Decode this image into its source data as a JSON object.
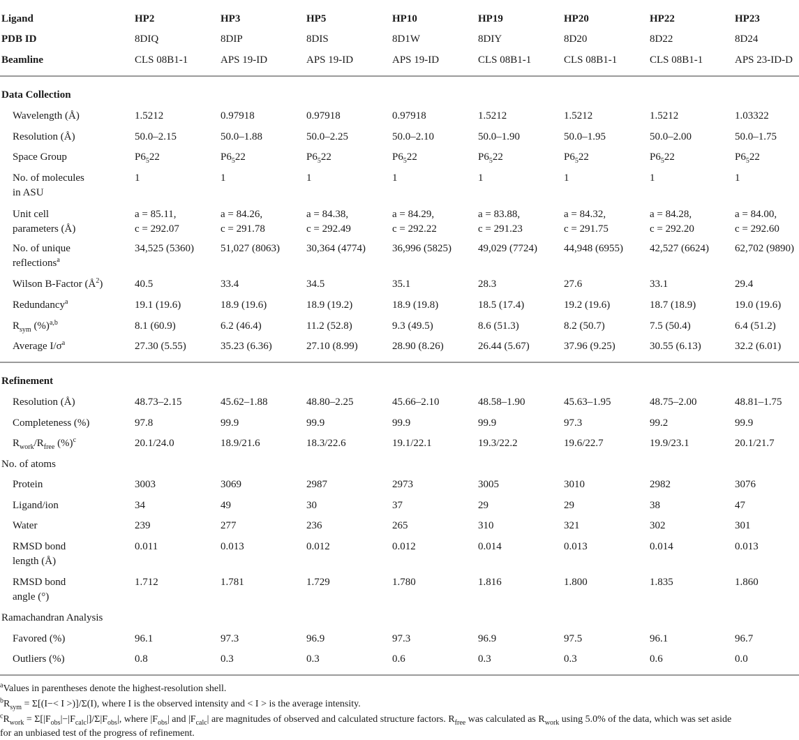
{
  "header": {
    "ligand_label": "Ligand",
    "pdb_label": "PDB ID",
    "beamline_label": "Beamline",
    "ligands": [
      "HP2",
      "HP3",
      "HP5",
      "HP10",
      "HP19",
      "HP20",
      "HP22",
      "HP23"
    ],
    "pdb_ids": [
      "8DIQ",
      "8DIP",
      "8DIS",
      "8D1W",
      "8DIY",
      "8D20",
      "8D22",
      "8D24"
    ],
    "beamlines": [
      "CLS 08B1-1",
      "APS 19-ID",
      "APS 19-ID",
      "APS 19-ID",
      "CLS 08B1-1",
      "CLS 08B1-1",
      "CLS 08B1-1",
      "APS 23-ID-D"
    ]
  },
  "sections": {
    "data_collection": "Data Collection",
    "refinement": "Refinement"
  },
  "rows": {
    "wavelength": {
      "label": "Wavelength (Å)",
      "values": [
        "1.5212",
        "0.97918",
        "0.97918",
        "0.97918",
        "1.5212",
        "1.5212",
        "1.5212",
        "1.03322"
      ]
    },
    "resolution_dc": {
      "label": "Resolution (Å)",
      "values": [
        "50.0–2.15",
        "50.0–1.88",
        "50.0–2.25",
        "50.0–2.10",
        "50.0–1.90",
        "50.0–1.95",
        "50.0–2.00",
        "50.0–1.75"
      ]
    },
    "space_group": {
      "label": "Space Group",
      "prefix": "P6",
      "sub": "5",
      "suffix": "22"
    },
    "molecules_asu": {
      "label_line1": "No. of molecules",
      "label_line2": "in ASU",
      "values": [
        "1",
        "1",
        "1",
        "1",
        "1",
        "1",
        "1",
        "1"
      ]
    },
    "unit_cell": {
      "label_line1": "Unit cell",
      "label_line2": "parameters (Å)",
      "a_values": [
        "a = 85.11,",
        "a = 84.26,",
        "a = 84.38,",
        "a = 84.29,",
        "a = 83.88,",
        "a = 84.32,",
        "a = 84.28,",
        "a = 84.00,"
      ],
      "c_values": [
        "c = 292.07",
        "c = 291.78",
        "c = 292.49",
        "c = 292.22",
        "c = 291.23",
        "c = 291.75",
        "c = 292.20",
        "c = 292.60"
      ]
    },
    "unique_reflections": {
      "label_line1": "No. of unique",
      "label_line2": "reflections",
      "sup": "a",
      "values": [
        "34,525 (5360)",
        "51,027 (8063)",
        "30,364 (4774)",
        "36,996 (5825)",
        "49,029 (7724)",
        "44,948 (6955)",
        "42,527 (6624)",
        "62,702 (9890)"
      ]
    },
    "wilson": {
      "label_pre": "Wilson B-Factor (Å",
      "label_sup": "2",
      "label_post": ")",
      "values": [
        "40.5",
        "33.4",
        "34.5",
        "35.1",
        "28.3",
        "27.6",
        "33.1",
        "29.4"
      ]
    },
    "redundancy": {
      "label": "Redundancy",
      "sup": "a",
      "values": [
        "19.1 (19.6)",
        "18.9 (19.6)",
        "18.9 (19.2)",
        "18.9 (19.8)",
        "18.5 (17.4)",
        "19.2 (19.6)",
        "18.7 (18.9)",
        "19.0 (19.6)"
      ]
    },
    "rsym": {
      "label_r": "R",
      "label_sub": "sym",
      "label_post": " (%)",
      "sup": "a,b",
      "values": [
        "8.1 (60.9)",
        "6.2 (46.4)",
        "11.2 (52.8)",
        "9.3 (49.5)",
        "8.6 (51.3)",
        "8.2 (50.7)",
        "7.5 (50.4)",
        "6.4 (51.2)"
      ]
    },
    "average_i": {
      "label": "Average I/σ",
      "sup": "a",
      "values": [
        "27.30 (5.55)",
        "35.23 (6.36)",
        "27.10 (8.99)",
        "28.90 (8.26)",
        "26.44 (5.67)",
        "37.96 (9.25)",
        "30.55 (6.13)",
        "32.2 (6.01)"
      ]
    },
    "resolution_ref": {
      "label": "Resolution (Å)",
      "values": [
        "48.73–2.15",
        "45.62–1.88",
        "48.80–2.25",
        "45.66–2.10",
        "48.58–1.90",
        "45.63–1.95",
        "48.75–2.00",
        "48.81–1.75"
      ]
    },
    "completeness": {
      "label": "Completeness (%)",
      "values": [
        "97.8",
        "99.9",
        "99.9",
        "99.9",
        "99.9",
        "97.3",
        "99.2",
        "99.9"
      ]
    },
    "rwork_rfree": {
      "label_r1": "R",
      "label_sub1": "work",
      "label_mid": "/R",
      "label_sub2": "free",
      "label_post": " (%)",
      "sup": "c",
      "values": [
        "20.1/24.0",
        "18.9/21.6",
        "18.3/22.6",
        "19.1/22.1",
        "19.3/22.2",
        "19.6/22.7",
        "19.9/23.1",
        "20.1/21.7"
      ]
    },
    "no_atoms": {
      "label": "No. of atoms"
    },
    "protein": {
      "label": "Protein",
      "values": [
        "3003",
        "3069",
        "2987",
        "2973",
        "3005",
        "3010",
        "2982",
        "3076"
      ]
    },
    "ligand_ion": {
      "label": "Ligand/ion",
      "values": [
        "34",
        "49",
        "30",
        "37",
        "29",
        "29",
        "38",
        "47"
      ]
    },
    "water": {
      "label": "Water",
      "values": [
        "239",
        "277",
        "236",
        "265",
        "310",
        "321",
        "302",
        "301"
      ]
    },
    "rmsd_length": {
      "label_line1": "RMSD bond",
      "label_line2": "length (Å)",
      "values": [
        "0.011",
        "0.013",
        "0.012",
        "0.012",
        "0.014",
        "0.013",
        "0.014",
        "0.013"
      ]
    },
    "rmsd_angle": {
      "label_line1": "RMSD bond",
      "label_line2": "angle (°)",
      "values": [
        "1.712",
        "1.781",
        "1.729",
        "1.780",
        "1.816",
        "1.800",
        "1.835",
        "1.860"
      ]
    },
    "ramachandran": {
      "label": "Ramachandran Analysis"
    },
    "favored": {
      "label": "Favored (%)",
      "values": [
        "96.1",
        "97.3",
        "96.9",
        "97.3",
        "96.9",
        "97.5",
        "96.1",
        "96.7"
      ]
    },
    "outliers": {
      "label": "Outliers (%)",
      "values": [
        "0.8",
        "0.3",
        "0.3",
        "0.6",
        "0.3",
        "0.3",
        "0.6",
        "0.0"
      ]
    }
  },
  "footnotes": {
    "a": {
      "mark": "a",
      "text": "Values in parentheses denote the highest-resolution shell."
    },
    "b": {
      "mark": "b",
      "text": "R<sub>sym</sub> = Σ[(I−&lt; I &gt;)]/Σ(I), where I is the observed intensity and &lt; I &gt; is the average intensity."
    },
    "c": {
      "mark": "c",
      "text": "R<sub>work</sub> = Σ[|F<sub>obs</sub>|−|F<sub>calc</sub>|]/Σ|F<sub>obs</sub>|, where |F<sub>obs</sub>| and |F<sub>calc</sub>| are magnitudes of observed and calculated structure factors. R<sub>free</sub> was calculated as R<sub>work</sub> using 5.0% of the data, which was set aside",
      "text_line2": "for an unbiased test of the progress of refinement."
    }
  }
}
